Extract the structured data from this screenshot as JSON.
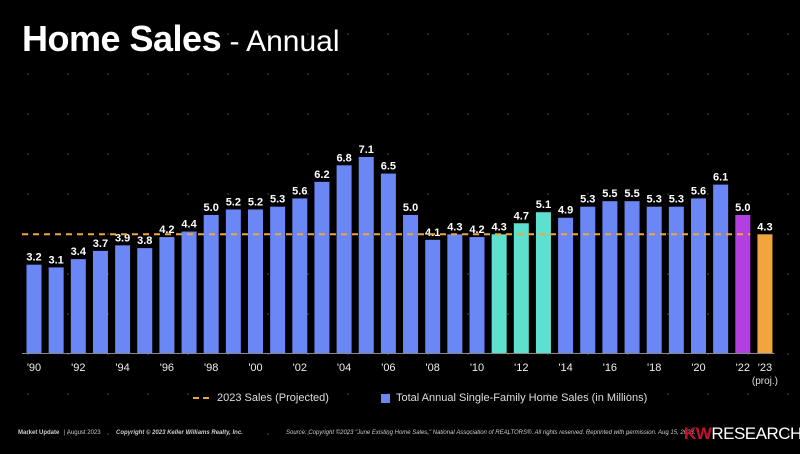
{
  "title": {
    "main": "Home Sales",
    "sub": " - Annual"
  },
  "chart_data": {
    "type": "bar",
    "categories": [
      "1990",
      "1991",
      "1992",
      "1993",
      "1994",
      "1995",
      "1996",
      "1997",
      "1998",
      "1999",
      "2000",
      "2001",
      "2002",
      "2003",
      "2004",
      "2005",
      "2006",
      "2007",
      "2008",
      "2009",
      "2010",
      "2011",
      "2012",
      "2013",
      "2014",
      "2015",
      "2016",
      "2017",
      "2018",
      "2019",
      "2020",
      "2021",
      "2022",
      "2023"
    ],
    "values": [
      3.2,
      3.1,
      3.4,
      3.7,
      3.9,
      3.8,
      4.2,
      4.4,
      5.0,
      5.2,
      5.2,
      5.3,
      5.6,
      6.2,
      6.8,
      7.1,
      6.5,
      5.0,
      4.1,
      4.3,
      4.2,
      4.3,
      4.7,
      5.1,
      4.9,
      5.3,
      5.5,
      5.5,
      5.3,
      5.3,
      5.6,
      6.1,
      5.0,
      4.3
    ],
    "data_labels": [
      "3.2",
      "3.1",
      "3.4",
      "3.7",
      "3.9",
      "3.8",
      "4.2",
      "4.4",
      "5.0",
      "5.2",
      "5.2",
      "5.3",
      "5.6",
      "6.2",
      "6.8",
      "7.1",
      "6.5",
      "5.0",
      "4.1",
      "4.3",
      "4.2",
      "4.3",
      "4.7",
      "5.1",
      "4.9",
      "5.3",
      "5.5",
      "5.5",
      "5.3",
      "5.3",
      "5.6",
      "6.1",
      "5.0",
      "4.3"
    ],
    "tick_labels": [
      "'90",
      "",
      "'92",
      "",
      "'94",
      "",
      "'96",
      "",
      "'98",
      "",
      "'00",
      "",
      "'02",
      "",
      "'04",
      "",
      "'06",
      "",
      "'08",
      "",
      "'10",
      "",
      "'12",
      "",
      "'14",
      "",
      "'16",
      "",
      "'18",
      "",
      "'20",
      "",
      "'22",
      "'23"
    ],
    "tick_sublabel_2023": "(proj.)",
    "reference_line": {
      "value": 4.3,
      "label": "2023 Sales (Projected)",
      "color": "#f0a63c",
      "style": "dashed"
    },
    "series": [
      {
        "name": "Total Annual Single-Family Home Sales (in Millions)",
        "color": "#6b86f5"
      }
    ],
    "highlight_colors": {
      "2011": "#5fe0cf",
      "2012": "#5fe0cf",
      "2013": "#5fe0cf",
      "2022": "#b23fe0",
      "2023": "#f0a63c"
    },
    "ylim": [
      0,
      7.1
    ],
    "grid": false,
    "legend_placement": "bottom"
  },
  "footer": {
    "market_update": "Market Update",
    "date": "| August 2023",
    "copyright": "Copyright © 2023 Keller Williams Realty, Inc.",
    "source": "Source: Copyright ©2023 \"June Existing Home Sales.\" National Association of REALTORS®. All rights reserved. Reprinted with permission. Aug 15, 2023.",
    "brand_kw": "KW",
    "brand_research": "RESEARCH"
  }
}
